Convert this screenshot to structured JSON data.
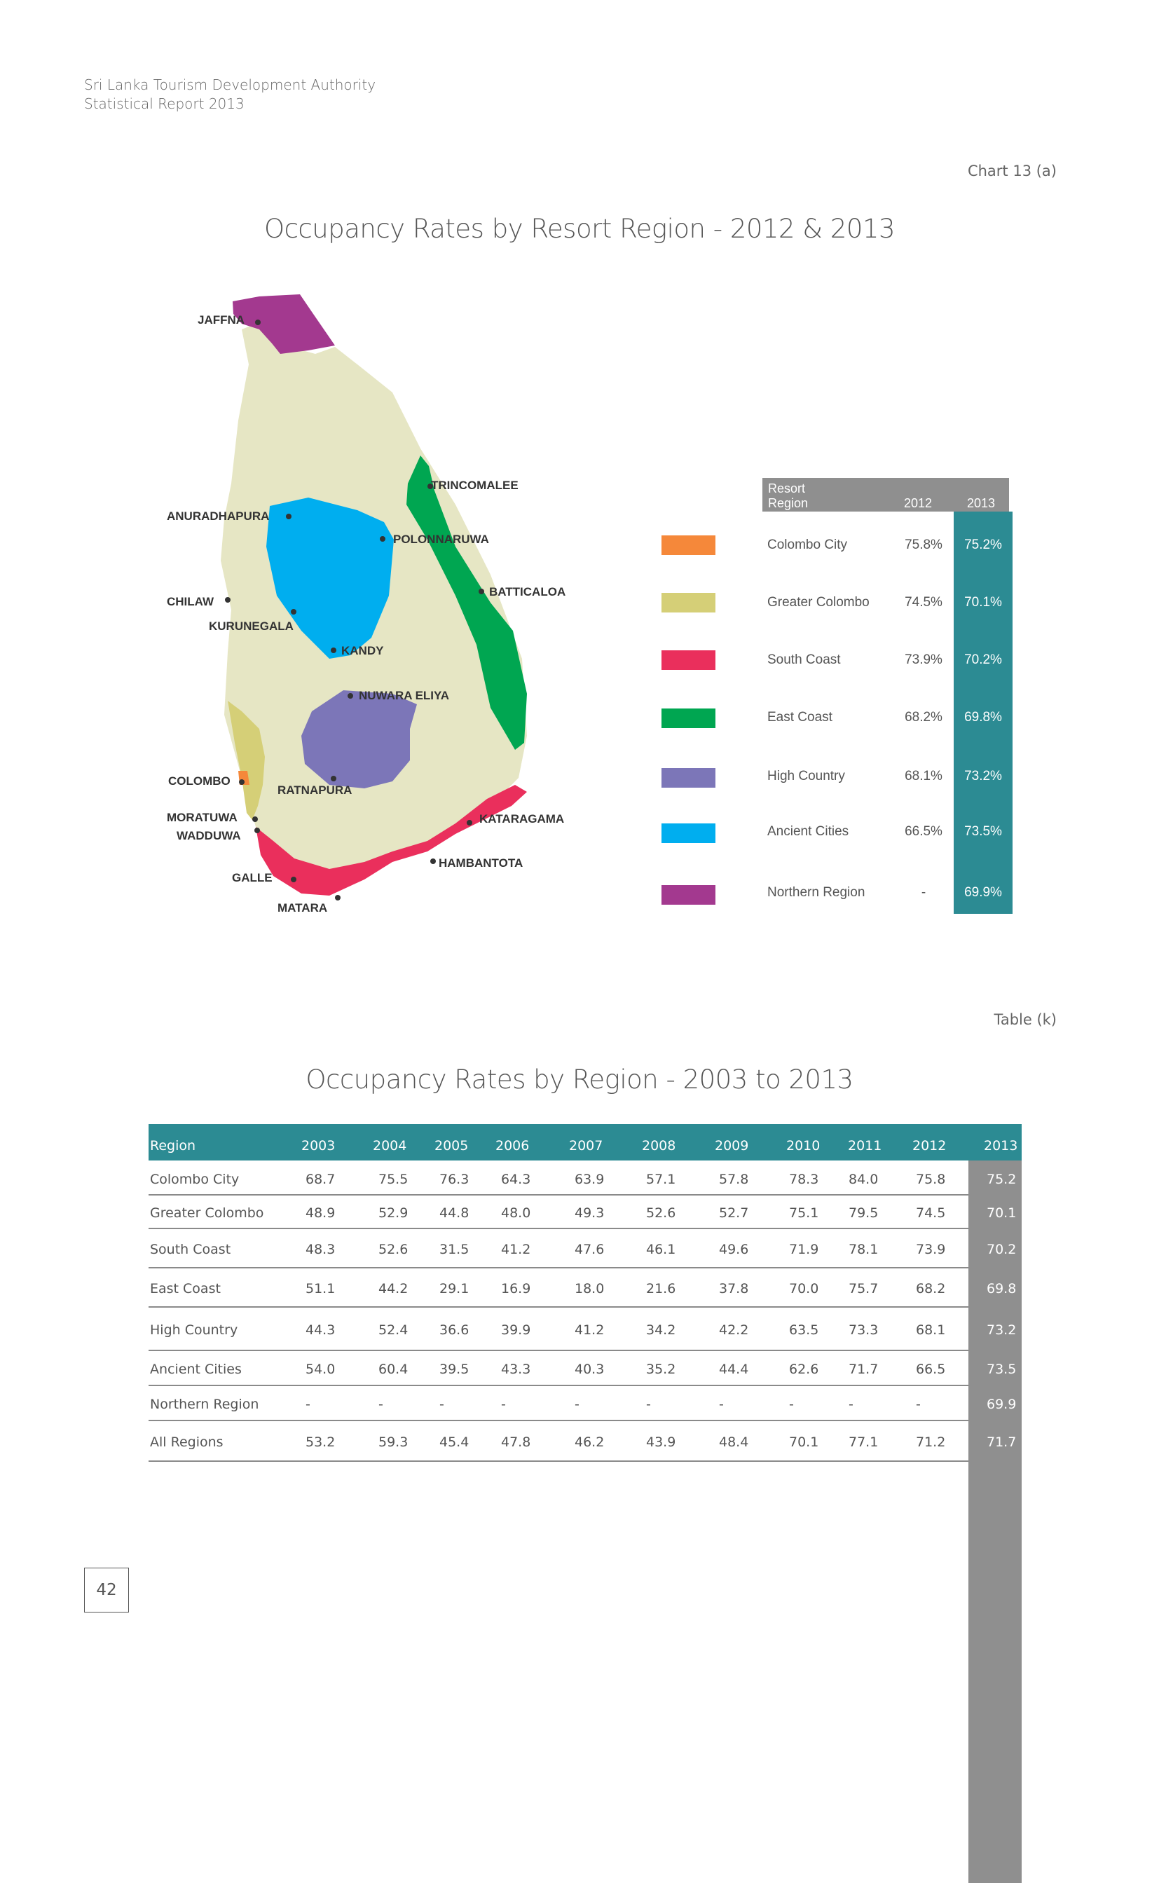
{
  "header": {
    "line1": "Sri Lanka Tourism Development Authority",
    "line2": "Statistical Report 2013"
  },
  "chart_ref": "Chart 13 (a)",
  "chart_title": "Occupancy Rates by Resort Region  - 2012 & 2013",
  "map_labels": {
    "jaffna": "JAFFNA",
    "trincomalee": "TRINCOMALEE",
    "anuradhapura": "ANURADHAPURA",
    "polonnaruwa": "POLONNARUWA",
    "batticaloa": "BATTICALOA",
    "chilaw": "CHILAW",
    "kurunegala": "KURUNEGALA",
    "kandy": "KANDY",
    "nuwara_eliya": "NUWARA ELIYA",
    "colombo": "COLOMBO",
    "ratnapura": "RATNAPURA",
    "moratuwa": "MORATUWA",
    "katharagama": "KATARAGAMA",
    "wadduwa": "WADDUWA",
    "hambantota": "HAMBANTOTA",
    "galle": "GALLE",
    "matara": "MATARA"
  },
  "colors": {
    "colombo_city": "#f5883a",
    "greater_colombo": "#d5cf77",
    "south_coast": "#ea2f5c",
    "east_coast": "#00a651",
    "high_country": "#7c76b8",
    "ancient_cities": "#00aeef",
    "northern_region": "#a3398f",
    "island": "#e6e6c4",
    "teal": "#2c8b93",
    "grey": "#8f8f8f"
  },
  "legend": {
    "head_region_1": "Resort",
    "head_region_2": "Region",
    "head_2012": "2012",
    "head_2013": "2013",
    "rows": [
      {
        "name": "Colombo City",
        "v2012": "75.8%",
        "v2013": "75.2%"
      },
      {
        "name": "Greater Colombo",
        "v2012": "74.5%",
        "v2013": "70.1%"
      },
      {
        "name": "South Coast",
        "v2012": "73.9%",
        "v2013": "70.2%"
      },
      {
        "name": "East Coast",
        "v2012": "68.2%",
        "v2013": "69.8%"
      },
      {
        "name": "High Country",
        "v2012": "68.1%",
        "v2013": "73.2%"
      },
      {
        "name": "Ancient Cities",
        "v2012": "66.5%",
        "v2013": "73.5%"
      },
      {
        "name": "Northern Region",
        "v2012": "-",
        "v2013": "69.9%"
      }
    ]
  },
  "table_ref": "Table (k)",
  "table_title": "Occupancy Rates by Region  - 2003 to 2013",
  "table": {
    "headers": [
      "Region",
      "2003",
      "2004",
      "2005",
      "2006",
      "2007",
      "2008",
      "2009",
      "2010",
      "2011",
      "2012",
      "2013"
    ],
    "rows": [
      [
        "Colombo City",
        "68.7",
        "75.5",
        "76.3",
        "64.3",
        "63.9",
        "57.1",
        "57.8",
        "78.3",
        "84.0",
        "75.8",
        "75.2"
      ],
      [
        "Greater Colombo",
        "48.9",
        "52.9",
        "44.8",
        "48.0",
        "49.3",
        "52.6",
        "52.7",
        "75.1",
        "79.5",
        "74.5",
        "70.1"
      ],
      [
        "South Coast",
        "48.3",
        "52.6",
        "31.5",
        "41.2",
        "47.6",
        "46.1",
        "49.6",
        "71.9",
        "78.1",
        "73.9",
        "70.2"
      ],
      [
        "East Coast",
        "51.1",
        "44.2",
        "29.1",
        "16.9",
        "18.0",
        "21.6",
        "37.8",
        "70.0",
        "75.7",
        "68.2",
        "69.8"
      ],
      [
        "High Country",
        "44.3",
        "52.4",
        "36.6",
        "39.9",
        "41.2",
        "34.2",
        "42.2",
        "63.5",
        "73.3",
        "68.1",
        "73.2"
      ],
      [
        "Ancient Cities",
        "54.0",
        "60.4",
        "39.5",
        "43.3",
        "40.3",
        "35.2",
        "44.4",
        "62.6",
        "71.7",
        "66.5",
        "73.5"
      ],
      [
        "Northern Region",
        "-",
        "-",
        "-",
        "-",
        "-",
        "-",
        "-",
        "-",
        "-",
        "-",
        "69.9"
      ],
      [
        "All Regions",
        "53.2",
        "59.3",
        "45.4",
        "47.8",
        "46.2",
        "43.9",
        "48.4",
        "70.1",
        "77.1",
        "71.2",
        "71.7"
      ]
    ]
  },
  "page_number": "42"
}
